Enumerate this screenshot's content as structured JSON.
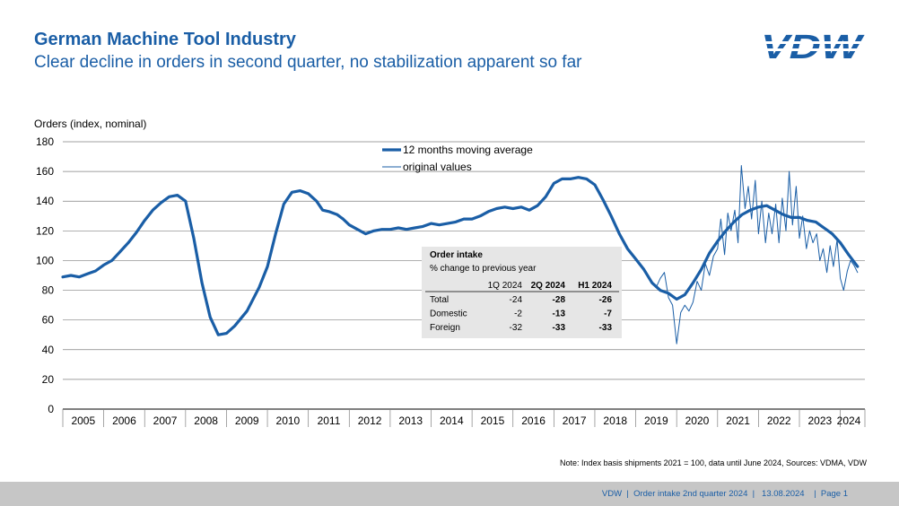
{
  "header": {
    "title": "German Machine Tool Industry",
    "subtitle": "Clear decline in orders in second quarter, no stabilization apparent so far"
  },
  "logo": {
    "text": "VDW",
    "color": "#1a5ea6"
  },
  "note": "Note: Index basis shipments 2021 = 100, data until June 2024, Sources: VDMA, VDW",
  "footer": {
    "text": "VDW  |  Order intake 2nd quarter 2024  |   13.08.2024    |  Page 1"
  },
  "colors": {
    "primary": "#1a5ea6",
    "grid": "#808080",
    "footer_bg": "#c6c6c6",
    "table_bg": "#e6e6e6"
  },
  "order_table": {
    "title": "Order intake",
    "subtitle": "% change to previous year",
    "columns": [
      "1Q 2024",
      "2Q 2024",
      "H1 2024"
    ],
    "rows": [
      {
        "label": "Total",
        "values": [
          "-24",
          "-28",
          "-26"
        ]
      },
      {
        "label": "Domestic",
        "values": [
          "-2",
          "-13",
          "-7"
        ]
      },
      {
        "label": "Foreign",
        "values": [
          "-32",
          "-33",
          "-33"
        ]
      }
    ]
  },
  "chart_data": {
    "type": "line",
    "title": "",
    "ylabel": "Orders (index, nominal)",
    "xlabel": "",
    "ylim": [
      0,
      180
    ],
    "yticks": [
      0,
      20,
      40,
      60,
      80,
      100,
      120,
      140,
      160,
      180
    ],
    "xlim": [
      2005,
      2024.6
    ],
    "xticks": [
      "2005",
      "2006",
      "2007",
      "2008",
      "2009",
      "2010",
      "2011",
      "2012",
      "2013",
      "2014",
      "2015",
      "2016",
      "2017",
      "2018",
      "2019",
      "2020",
      "2021",
      "2022",
      "2023",
      "2024"
    ],
    "grid": "horizontal",
    "legend": "top-center",
    "series": [
      {
        "name": "12 months moving average",
        "style": "thick",
        "x": [
          2005.0,
          2005.2,
          2005.4,
          2005.6,
          2005.8,
          2006.0,
          2006.2,
          2006.4,
          2006.6,
          2006.8,
          2007.0,
          2007.2,
          2007.4,
          2007.6,
          2007.8,
          2008.0,
          2008.2,
          2008.4,
          2008.6,
          2008.8,
          2009.0,
          2009.2,
          2009.5,
          2009.8,
          2010.0,
          2010.2,
          2010.4,
          2010.6,
          2010.8,
          2011.0,
          2011.2,
          2011.35,
          2011.5,
          2011.7,
          2011.85,
          2012.0,
          2012.2,
          2012.4,
          2012.6,
          2012.8,
          2013.0,
          2013.2,
          2013.4,
          2013.6,
          2013.8,
          2014.0,
          2014.2,
          2014.4,
          2014.6,
          2014.8,
          2015.0,
          2015.2,
          2015.4,
          2015.6,
          2015.8,
          2016.0,
          2016.2,
          2016.4,
          2016.6,
          2016.8,
          2017.0,
          2017.2,
          2017.4,
          2017.6,
          2017.8,
          2018.0,
          2018.2,
          2018.4,
          2018.6,
          2018.8,
          2019.0,
          2019.2,
          2019.4,
          2019.6,
          2019.8,
          2020.0,
          2020.2,
          2020.4,
          2020.6,
          2020.8,
          2021.0,
          2021.2,
          2021.4,
          2021.6,
          2021.8,
          2022.0,
          2022.2,
          2022.4,
          2022.6,
          2022.8,
          2023.0,
          2023.2,
          2023.4,
          2023.6,
          2023.8,
          2024.0,
          2024.2,
          2024.42
        ],
        "y": [
          89,
          90,
          89,
          91,
          93,
          97,
          100,
          106,
          112,
          119,
          127,
          134,
          139,
          143,
          144,
          140,
          115,
          85,
          62,
          50,
          51,
          56,
          66,
          82,
          96,
          118,
          138,
          146,
          147,
          145,
          140,
          134,
          133,
          131,
          128,
          124,
          121,
          118,
          120,
          121,
          121,
          122,
          121,
          122,
          123,
          125,
          124,
          125,
          126,
          128,
          128,
          130,
          133,
          135,
          136,
          135,
          136,
          134,
          137,
          143,
          152,
          155,
          155,
          156,
          155,
          151,
          141,
          130,
          118,
          108,
          101,
          94,
          85,
          80,
          78,
          74,
          77,
          85,
          94,
          105,
          113,
          120,
          126,
          131,
          134,
          136,
          137,
          134,
          131,
          129,
          129,
          127,
          126,
          122,
          118,
          112,
          104,
          96
        ]
      },
      {
        "name": "original values",
        "style": "thin",
        "x": [
          2019.5,
          2019.6,
          2019.7,
          2019.8,
          2019.9,
          2020.0,
          2020.1,
          2020.2,
          2020.3,
          2020.4,
          2020.5,
          2020.6,
          2020.7,
          2020.8,
          2020.9,
          2021.0,
          2021.08,
          2021.17,
          2021.25,
          2021.33,
          2021.42,
          2021.5,
          2021.58,
          2021.67,
          2021.75,
          2021.83,
          2021.92,
          2022.0,
          2022.08,
          2022.17,
          2022.25,
          2022.33,
          2022.42,
          2022.5,
          2022.58,
          2022.67,
          2022.75,
          2022.83,
          2022.92,
          2023.0,
          2023.08,
          2023.17,
          2023.25,
          2023.33,
          2023.42,
          2023.5,
          2023.58,
          2023.67,
          2023.75,
          2023.83,
          2023.92,
          2024.0,
          2024.08,
          2024.17,
          2024.25,
          2024.33,
          2024.42
        ],
        "y": [
          82,
          88,
          92,
          75,
          70,
          44,
          65,
          70,
          66,
          72,
          86,
          80,
          98,
          90,
          103,
          108,
          128,
          104,
          132,
          120,
          134,
          112,
          164,
          135,
          150,
          128,
          154,
          118,
          140,
          112,
          132,
          118,
          138,
          112,
          142,
          120,
          160,
          124,
          150,
          115,
          130,
          108,
          120,
          112,
          118,
          100,
          108,
          92,
          110,
          96,
          114,
          88,
          80,
          93,
          100,
          97,
          92
        ]
      }
    ]
  }
}
